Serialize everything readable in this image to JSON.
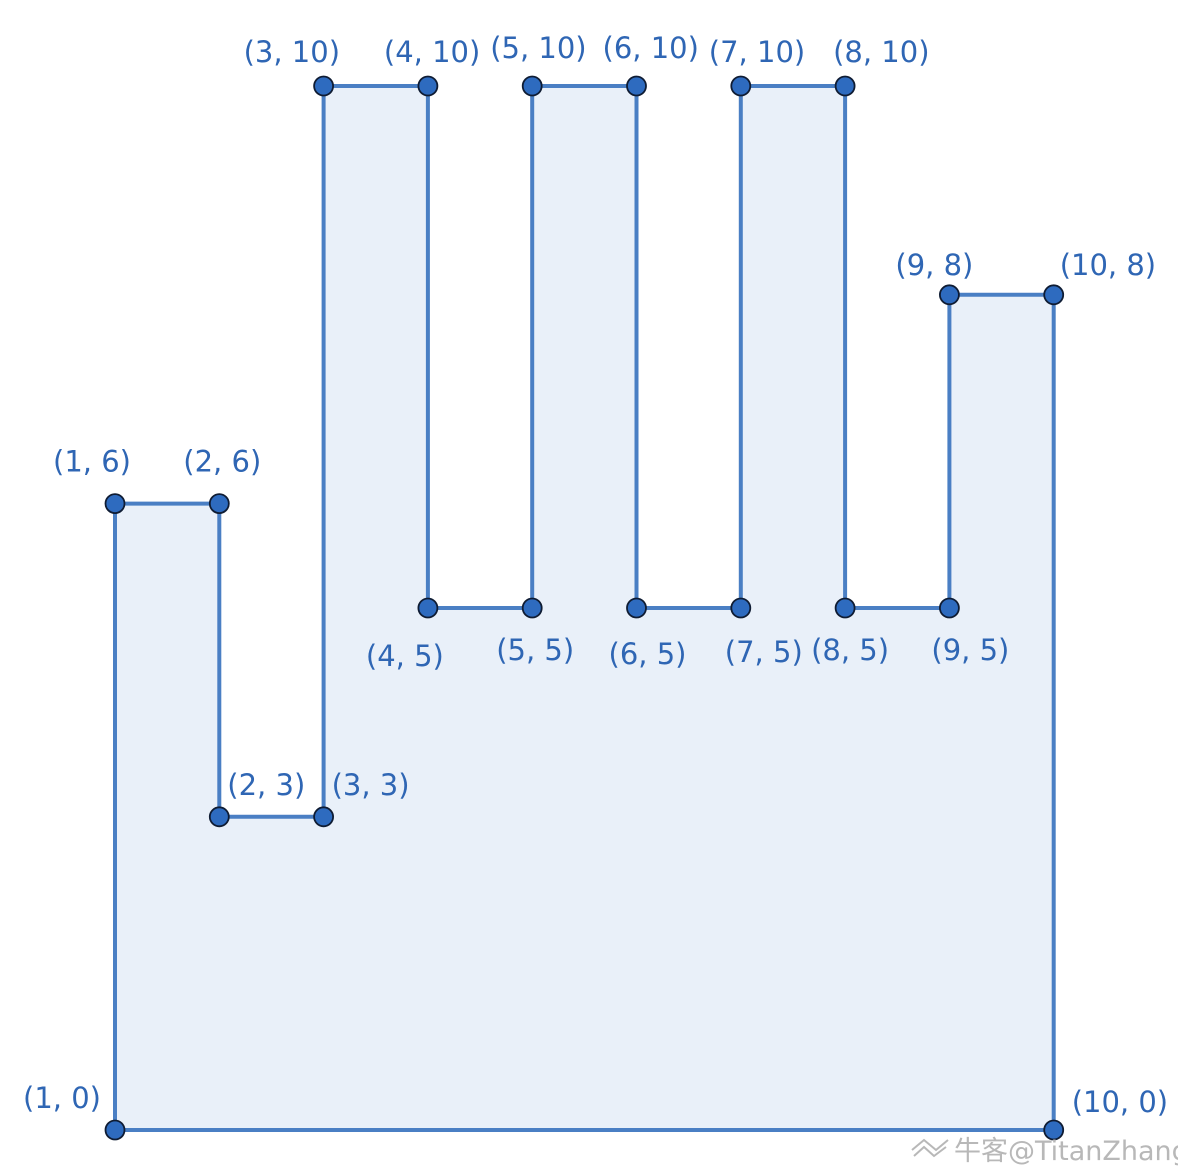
{
  "colors": {
    "stroke": "#4a7fc4",
    "fill": "#e9f0f9",
    "point": "#2e6bbf",
    "point_outline": "#0f1c33",
    "label": "#2f66b4",
    "watermark": "#b8b8b8"
  },
  "polygon": {
    "vertices": [
      {
        "x": 1,
        "y": 0,
        "label": "(1, 0)"
      },
      {
        "x": 1,
        "y": 6,
        "label": "(1, 6)"
      },
      {
        "x": 2,
        "y": 6,
        "label": "(2, 6)"
      },
      {
        "x": 2,
        "y": 3,
        "label": "(2, 3)"
      },
      {
        "x": 3,
        "y": 3,
        "label": "(3, 3)"
      },
      {
        "x": 3,
        "y": 10,
        "label": "(3, 10)"
      },
      {
        "x": 4,
        "y": 10,
        "label": "(4, 10)"
      },
      {
        "x": 4,
        "y": 5,
        "label": "(4, 5)"
      },
      {
        "x": 5,
        "y": 5,
        "label": "(5, 5)"
      },
      {
        "x": 5,
        "y": 10,
        "label": "(5, 10)"
      },
      {
        "x": 6,
        "y": 10,
        "label": "(6, 10)"
      },
      {
        "x": 6,
        "y": 5,
        "label": "(6, 5)"
      },
      {
        "x": 7,
        "y": 5,
        "label": "(7, 5)"
      },
      {
        "x": 7,
        "y": 10,
        "label": "(7, 10)"
      },
      {
        "x": 8,
        "y": 10,
        "label": "(8, 10)"
      },
      {
        "x": 8,
        "y": 5,
        "label": "(8, 5)"
      },
      {
        "x": 9,
        "y": 5,
        "label": "(9, 5)"
      },
      {
        "x": 9,
        "y": 8,
        "label": "(9, 8)"
      },
      {
        "x": 10,
        "y": 8,
        "label": "(10, 8)"
      },
      {
        "x": 10,
        "y": 0,
        "label": "(10, 0)"
      }
    ]
  },
  "watermark": {
    "text": "牛客@TitanZhang",
    "icon": "nowcoder-logo-icon"
  }
}
